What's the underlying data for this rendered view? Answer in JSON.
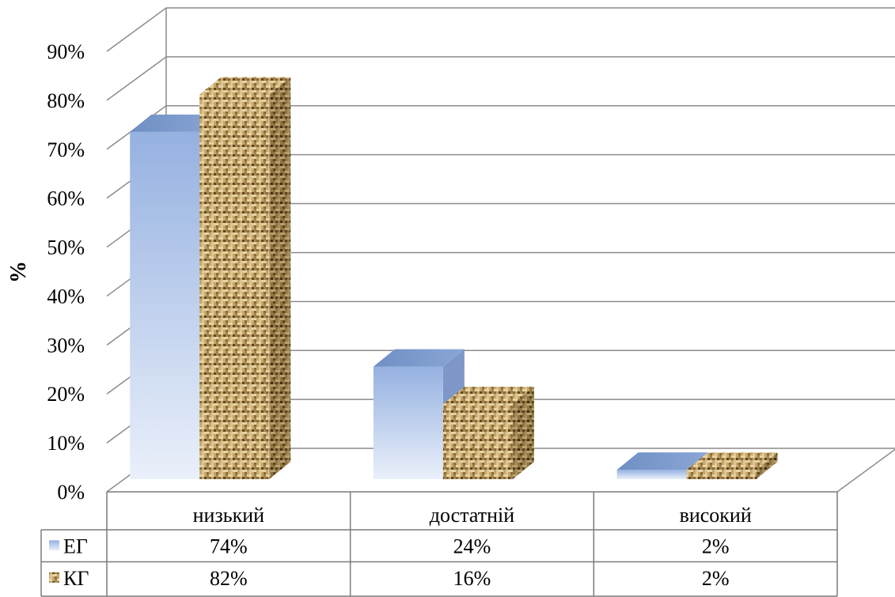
{
  "chart_data": {
    "type": "bar",
    "categories": [
      "низький",
      "достатній",
      "високий"
    ],
    "series": [
      {
        "name": "ЕГ",
        "values": [
          74,
          24,
          2
        ],
        "color": "#a9c1e8",
        "labels": [
          "74%",
          "24%",
          "2%"
        ]
      },
      {
        "name": "КГ",
        "values": [
          82,
          16,
          2
        ],
        "color": "#b89a5f",
        "labels": [
          "82%",
          "16%",
          "2%"
        ]
      }
    ],
    "ylabel": "%",
    "ylim": [
      0,
      90
    ],
    "yticks": [
      0,
      10,
      20,
      30,
      40,
      50,
      60,
      70,
      80,
      90
    ],
    "ytick_labels": [
      "0%",
      "10%",
      "20%",
      "30%",
      "40%",
      "50%",
      "60%",
      "70%",
      "80%",
      "90%"
    ],
    "grid": true,
    "style": "3d-clustered",
    "legend_position": "data-table"
  }
}
